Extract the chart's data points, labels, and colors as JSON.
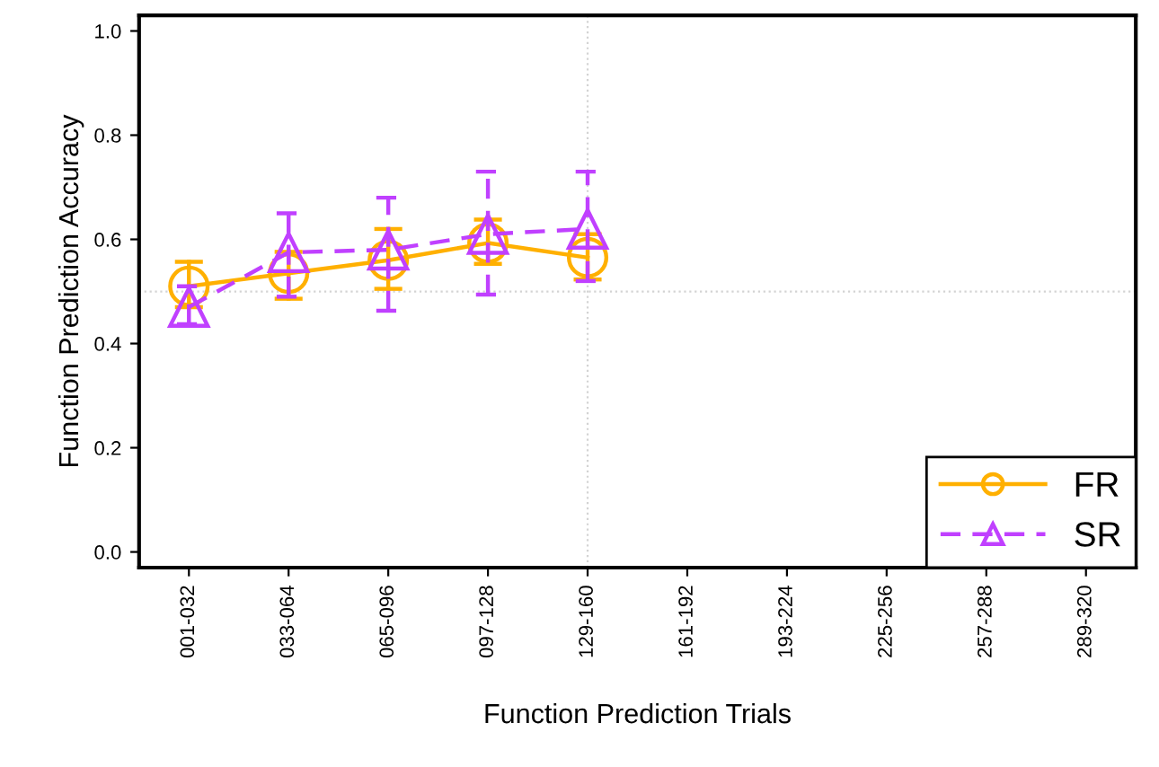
{
  "chart_data": {
    "type": "line",
    "xlabel": "Function Prediction Trials",
    "ylabel": "Function Prediction Accuracy",
    "categories": [
      "001-032",
      "033-064",
      "065-096",
      "097-128",
      "129-160",
      "161-192",
      "193-224",
      "225-256",
      "257-288",
      "289-320"
    ],
    "series": [
      {
        "name": "FR",
        "color": "#ffb000",
        "marker": "circle",
        "line_style": "solid",
        "values": [
          0.51,
          0.535,
          0.56,
          0.593,
          0.565,
          null,
          null,
          null,
          null,
          null
        ],
        "errors": [
          [
            0.47,
            0.557
          ],
          [
            0.486,
            0.576
          ],
          [
            0.505,
            0.62
          ],
          [
            0.553,
            0.638
          ],
          [
            0.523,
            0.61
          ],
          null,
          null,
          null,
          null,
          null
        ]
      },
      {
        "name": "SR",
        "color": "#c040ff",
        "marker": "triangle",
        "line_style": "dashed",
        "values": [
          0.47,
          0.575,
          0.58,
          0.61,
          0.62,
          null,
          null,
          null,
          null,
          null
        ],
        "errors": [
          [
            0.437,
            0.51
          ],
          [
            0.49,
            0.65
          ],
          [
            0.463,
            0.68
          ],
          [
            0.494,
            0.73
          ],
          [
            0.52,
            0.73
          ],
          null,
          null,
          null,
          null,
          null
        ]
      }
    ],
    "ylim": [
      -0.03,
      1.03
    ],
    "yticks": [
      {
        "value": 0,
        "label": "0.0"
      },
      {
        "value": 0.2,
        "label": "0.2"
      },
      {
        "value": 0.4,
        "label": "0.4"
      },
      {
        "value": 0.6,
        "label": "0.6"
      },
      {
        "value": 0.8,
        "label": "0.8"
      },
      {
        "value": 1,
        "label": "1.0"
      }
    ],
    "ref_lines": [
      {
        "axis": "y",
        "value": 0.5,
        "color": "#d3d3d3",
        "line_style": "dotted"
      },
      {
        "axis": "x",
        "value": "129-160",
        "color": "#d3d3d3",
        "line_style": "dotted"
      }
    ],
    "grid": false,
    "legend": "bottom right"
  }
}
